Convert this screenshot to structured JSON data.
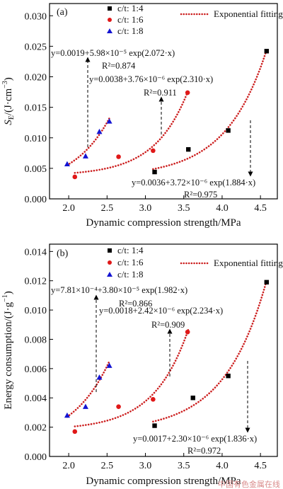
{
  "chart_data": [
    {
      "type": "scatter",
      "panel_label": "(a)",
      "xlabel": "Dynamic compression strength/MPa",
      "ylabel": "S_E/(J·cm⁻³)",
      "xlim": [
        1.75,
        4.72
      ],
      "ylim": [
        0.0,
        0.032
      ],
      "xticks": [
        "2.0",
        "2.5",
        "3.0",
        "3.5",
        "4.0",
        "4.5"
      ],
      "yticks": [
        "0.000",
        "0.005",
        "0.010",
        "0.015",
        "0.020",
        "0.025",
        "0.030"
      ],
      "x_tick_values": [
        2.0,
        2.5,
        3.0,
        3.5,
        4.0,
        4.5
      ],
      "y_tick_values": [
        0.0,
        0.005,
        0.01,
        0.015,
        0.02,
        0.025,
        0.03
      ],
      "legend": {
        "position": "top",
        "entries": [
          {
            "label": "c/t: 1:4",
            "marker": "square",
            "color": "#000000"
          },
          {
            "label": "c/t: 1:6",
            "marker": "circle",
            "color": "#e01818"
          },
          {
            "label": "c/t: 1:8",
            "marker": "triangle",
            "color": "#1414d2"
          },
          {
            "label": "Exponential fitting",
            "marker": "dotted-line",
            "color": "#cc1f1f"
          }
        ]
      },
      "series": [
        {
          "name": "c/t: 1:4",
          "marker": "square",
          "color": "#000000",
          "x": [
            3.12,
            3.56,
            4.08,
            4.58
          ],
          "y": [
            0.0044,
            0.0081,
            0.0112,
            0.0242
          ]
        },
        {
          "name": "c/t: 1:6",
          "marker": "circle",
          "color": "#e01818",
          "x": [
            2.08,
            2.65,
            3.1,
            3.55
          ],
          "y": [
            0.0036,
            0.0069,
            0.0079,
            0.0174
          ]
        },
        {
          "name": "c/t: 1:8",
          "marker": "triangle",
          "color": "#1414d2",
          "x": [
            1.98,
            2.22,
            2.4,
            2.53
          ],
          "y": [
            0.0057,
            0.007,
            0.011,
            0.0127
          ]
        }
      ],
      "fits": [
        {
          "series": "c/t: 1:8",
          "a": 0.0019,
          "b": 5.98e-05,
          "c": 2.072,
          "x_range": [
            1.98,
            2.53
          ],
          "equation": "y=0.0019+5.98×10⁻⁵ exp(2.072·x)",
          "r2": "R²=0.874"
        },
        {
          "series": "c/t: 1:6",
          "a": 0.0038,
          "b": 3.76e-06,
          "c": 2.31,
          "x_range": [
            2.08,
            3.56
          ],
          "equation": "y=0.0038+3.76×10⁻⁶ exp(2.310·x)",
          "r2": "R²=0.911"
        },
        {
          "series": "c/t: 1:4",
          "a": 0.0036,
          "b": 3.72e-06,
          "c": 1.884,
          "x_range": [
            3.1,
            4.58
          ],
          "equation": "y=0.0036+3.72×10⁻⁶ exp(1.884·x)",
          "r2": "R²=0.975"
        }
      ]
    },
    {
      "type": "scatter",
      "panel_label": "(b)",
      "xlabel": "Dynamic compression strength/MPa",
      "ylabel": "Energy consumption/(J·g⁻¹)",
      "xlim": [
        1.75,
        4.72
      ],
      "ylim": [
        0.0,
        0.0145
      ],
      "xticks": [
        "2.0",
        "2.5",
        "3.0",
        "3.5",
        "4.0",
        "4.5"
      ],
      "yticks": [
        "0.000",
        "0.002",
        "0.004",
        "0.006",
        "0.008",
        "0.010",
        "0.012",
        "0.014"
      ],
      "x_tick_values": [
        2.0,
        2.5,
        3.0,
        3.5,
        4.0,
        4.5
      ],
      "y_tick_values": [
        0.0,
        0.002,
        0.004,
        0.006,
        0.008,
        0.01,
        0.012,
        0.014
      ],
      "legend": {
        "position": "top",
        "entries": [
          {
            "label": "c/t: 1:4",
            "marker": "square",
            "color": "#000000"
          },
          {
            "label": "c/t: 1:6",
            "marker": "circle",
            "color": "#e01818"
          },
          {
            "label": "c/t: 1:8",
            "marker": "triangle",
            "color": "#1414d2"
          },
          {
            "label": "Exponential fitting",
            "marker": "dotted-line",
            "color": "#cc1f1f"
          }
        ]
      },
      "series": [
        {
          "name": "c/t: 1:4",
          "marker": "square",
          "color": "#000000",
          "x": [
            3.12,
            3.62,
            4.08,
            4.58
          ],
          "y": [
            0.0021,
            0.004,
            0.0055,
            0.0119
          ]
        },
        {
          "name": "c/t: 1:6",
          "marker": "circle",
          "color": "#e01818",
          "x": [
            2.08,
            2.65,
            3.1,
            3.55
          ],
          "y": [
            0.0017,
            0.0034,
            0.0039,
            0.0085
          ]
        },
        {
          "name": "c/t: 1:8",
          "marker": "triangle",
          "color": "#1414d2",
          "x": [
            1.98,
            2.22,
            2.4,
            2.53
          ],
          "y": [
            0.0028,
            0.0034,
            0.0054,
            0.0062
          ]
        }
      ],
      "fits": [
        {
          "series": "c/t: 1:8",
          "a": 0.000781,
          "b": 3.8e-05,
          "c": 1.982,
          "x_range": [
            1.98,
            2.53
          ],
          "equation": "y=7.81×10⁻⁴+3.80×10⁻⁵ exp(1.982·x)",
          "r2": "R²=0.866"
        },
        {
          "series": "c/t: 1:6",
          "a": 0.0018,
          "b": 2.42e-06,
          "c": 2.234,
          "x_range": [
            2.08,
            3.56
          ],
          "equation": "y=0.0018+2.42×10⁻⁶ exp(2.234·x)",
          "r2": "R²=0.909"
        },
        {
          "series": "c/t: 1:4",
          "a": 0.0017,
          "b": 2.3e-06,
          "c": 1.836,
          "x_range": [
            3.1,
            4.58
          ],
          "equation": "y=0.0017+2.30×10⁻⁶ exp(1.836·x)",
          "r2": "R²=0.972"
        }
      ]
    }
  ],
  "watermark": "中国有色金属在线"
}
